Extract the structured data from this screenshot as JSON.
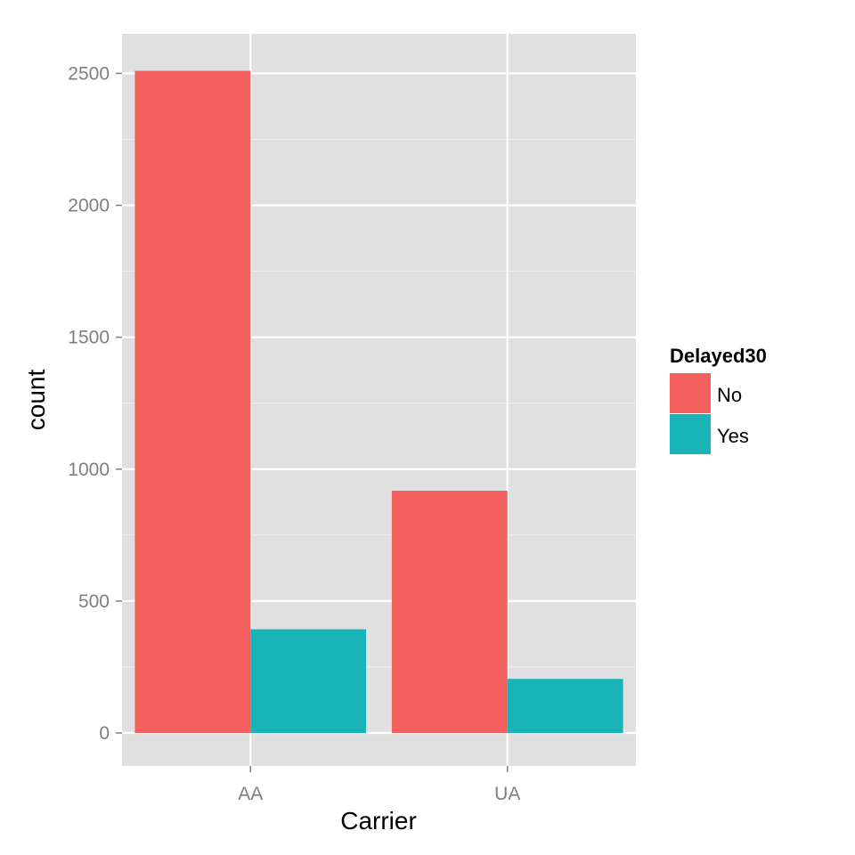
{
  "chart_data": {
    "type": "bar",
    "categories": [
      "AA",
      "UA"
    ],
    "series": [
      {
        "name": "No",
        "values": [
          2510,
          918
        ],
        "color": "#F25F5C"
      },
      {
        "name": "Yes",
        "values": [
          393,
          205
        ],
        "color": "#19B4B8"
      }
    ],
    "xlabel": "Carrier",
    "ylabel": "count",
    "ylim": [
      -125,
      2650
    ],
    "yticks": [
      0,
      500,
      1000,
      1500,
      2000,
      2500
    ],
    "yticks_labels": [
      "0",
      "500",
      "1000",
      "1500",
      "2000",
      "2500"
    ],
    "legend": {
      "title": "Delayed30",
      "placement": "right"
    },
    "grid": true,
    "panel_background": "#E0E0E0",
    "grid_color": "#FFFFFF"
  }
}
